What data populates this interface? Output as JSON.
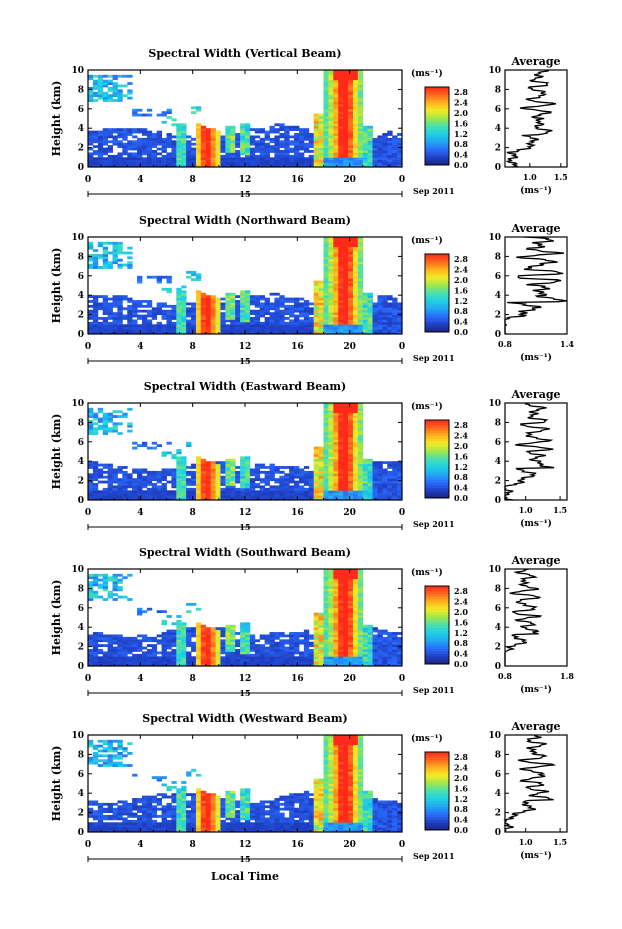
{
  "figure": {
    "xlabel": "Local Time",
    "colorbar_max": 3.0
  },
  "chart_data": [
    {
      "type": "heatmap",
      "title": "Spectral Width (Vertical Beam)",
      "ylabel": "Height (km)",
      "xlim": [
        0,
        24
      ],
      "ylim": [
        0,
        10
      ],
      "x_ticks": [
        "0",
        "4",
        "8",
        "12",
        "16",
        "20",
        "0"
      ],
      "y_ticks": [
        "0",
        "2",
        "4",
        "6",
        "8",
        "10"
      ],
      "date_day": "15",
      "date_label": "Sep 2011",
      "colorbar": {
        "label": "(ms⁻¹)",
        "ticks": [
          "0.0",
          "0.4",
          "0.8",
          "1.2",
          "1.6",
          "2.0",
          "2.4",
          "2.8"
        ]
      },
      "profile": {
        "title": "Average",
        "xlabel": "(ms⁻¹)",
        "xlim": [
          0.6,
          1.6
        ],
        "x_ticks": [
          "1.0",
          "1.5"
        ],
        "y_ticks": [
          "0",
          "2",
          "4",
          "6",
          "8",
          "10"
        ]
      }
    },
    {
      "type": "heatmap",
      "title": "Spectral Width (Northward Beam)",
      "ylabel": "Height (km)",
      "xlim": [
        0,
        24
      ],
      "ylim": [
        0,
        10
      ],
      "x_ticks": [
        "0",
        "4",
        "8",
        "12",
        "16",
        "20",
        "0"
      ],
      "y_ticks": [
        "0",
        "2",
        "4",
        "6",
        "8",
        "10"
      ],
      "date_day": "15",
      "date_label": "Sep 2011",
      "colorbar": {
        "label": "(ms⁻¹)",
        "ticks": [
          "0.0",
          "0.4",
          "0.8",
          "1.2",
          "1.6",
          "2.0",
          "2.4",
          "2.8"
        ]
      },
      "profile": {
        "title": "Average",
        "xlabel": "(ms⁻¹)",
        "xlim": [
          0.8,
          1.4
        ],
        "x_ticks": [
          "0.8",
          "1.4"
        ],
        "y_ticks": [
          "0",
          "2",
          "4",
          "6",
          "8",
          "10"
        ]
      }
    },
    {
      "type": "heatmap",
      "title": "Spectral Width (Eastward Beam)",
      "ylabel": "Height (km)",
      "xlim": [
        0,
        24
      ],
      "ylim": [
        0,
        10
      ],
      "x_ticks": [
        "0",
        "4",
        "8",
        "12",
        "16",
        "20",
        "0"
      ],
      "y_ticks": [
        "0",
        "2",
        "4",
        "6",
        "8",
        "10"
      ],
      "date_day": "15",
      "date_label": "Sep 2011",
      "colorbar": {
        "label": "(ms⁻¹)",
        "ticks": [
          "0.0",
          "0.4",
          "0.8",
          "1.2",
          "1.6",
          "2.0",
          "2.4",
          "2.8"
        ]
      },
      "profile": {
        "title": "Average",
        "xlabel": "(ms⁻¹)",
        "xlim": [
          0.7,
          1.6
        ],
        "x_ticks": [
          "1.0",
          "1.5"
        ],
        "y_ticks": [
          "0",
          "2",
          "4",
          "6",
          "8",
          "10"
        ]
      }
    },
    {
      "type": "heatmap",
      "title": "Spectral Width (Southward Beam)",
      "ylabel": "Height (km)",
      "xlim": [
        0,
        24
      ],
      "ylim": [
        0,
        10
      ],
      "x_ticks": [
        "0",
        "4",
        "8",
        "12",
        "16",
        "20",
        "0"
      ],
      "y_ticks": [
        "0",
        "2",
        "4",
        "6",
        "8",
        "10"
      ],
      "date_day": "15",
      "date_label": "Sep 2011",
      "colorbar": {
        "label": "(ms⁻¹)",
        "ticks": [
          "0.0",
          "0.4",
          "0.8",
          "1.2",
          "1.6",
          "2.0",
          "2.4",
          "2.8"
        ]
      },
      "profile": {
        "title": "Average",
        "xlabel": "(ms⁻¹)",
        "xlim": [
          0.8,
          1.8
        ],
        "x_ticks": [
          "0.8",
          "1.8"
        ],
        "y_ticks": [
          "0",
          "2",
          "4",
          "6",
          "8",
          "10"
        ]
      }
    },
    {
      "type": "heatmap",
      "title": "Spectral Width (Westward Beam)",
      "ylabel": "Height (km)",
      "xlim": [
        0,
        24
      ],
      "ylim": [
        0,
        10
      ],
      "x_ticks": [
        "0",
        "4",
        "8",
        "12",
        "16",
        "20",
        "0"
      ],
      "y_ticks": [
        "0",
        "2",
        "4",
        "6",
        "8",
        "10"
      ],
      "date_day": "15",
      "date_label": "Sep 2011",
      "colorbar": {
        "label": "(ms⁻¹)",
        "ticks": [
          "0.0",
          "0.4",
          "0.8",
          "1.2",
          "1.6",
          "2.0",
          "2.4",
          "2.8"
        ]
      },
      "profile": {
        "title": "Average",
        "xlabel": "(ms⁻¹)",
        "xlim": [
          0.7,
          1.6
        ],
        "x_ticks": [
          "1.0",
          "1.5"
        ],
        "y_ticks": [
          "0",
          "2",
          "4",
          "6",
          "8",
          "10"
        ]
      }
    }
  ]
}
